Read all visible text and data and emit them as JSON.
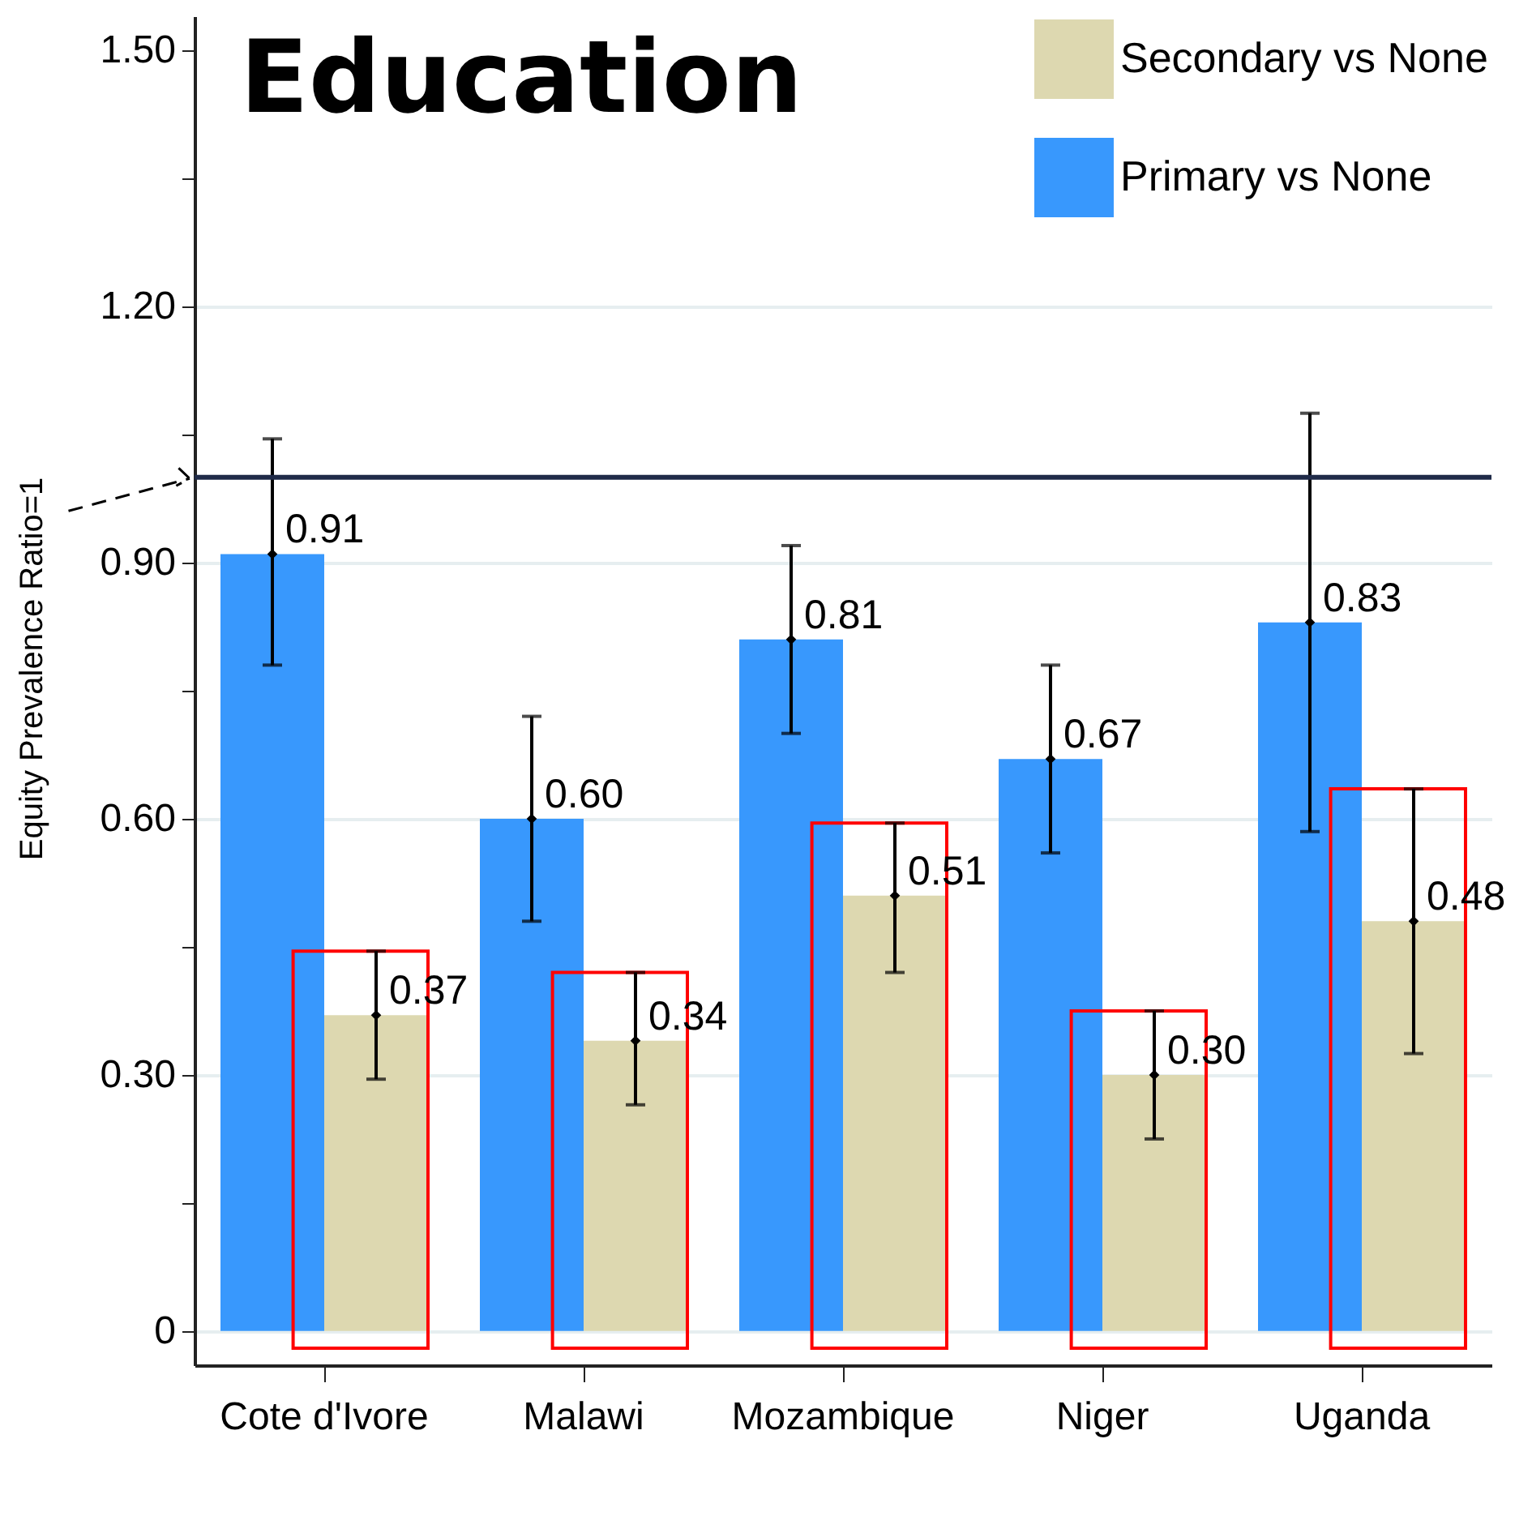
{
  "chart_data": {
    "type": "bar",
    "title": "Education",
    "categories": [
      "Cote d'Ivore",
      "Malawi",
      "Mozambique",
      "Niger",
      "Uganda"
    ],
    "series": [
      {
        "name": "Primary vs None",
        "color": "#3898fd",
        "values": [
          0.91,
          0.6,
          0.81,
          0.67,
          0.83
        ],
        "value_labels": [
          "0.91",
          "0.60",
          "0.81",
          "0.67",
          "0.83"
        ],
        "errors": [
          [
            0.78,
            1.045
          ],
          [
            0.48,
            0.72
          ],
          [
            0.7,
            0.92
          ],
          [
            0.56,
            0.78
          ],
          [
            0.585,
            1.075
          ]
        ]
      },
      {
        "name": "Secondary vs None",
        "color": "#ddd8b0",
        "values": [
          0.37,
          0.34,
          0.51,
          0.3,
          0.48
        ],
        "value_labels": [
          "0.37",
          "0.34",
          "0.51",
          "0.30",
          "0.48"
        ],
        "errors": [
          [
            0.295,
            0.445
          ],
          [
            0.265,
            0.42
          ],
          [
            0.42,
            0.595
          ],
          [
            0.225,
            0.375
          ],
          [
            0.325,
            0.635
          ]
        ]
      }
    ],
    "ylim": [
      -0.04,
      1.54
    ],
    "yticks": [
      0,
      {
        "value": 0.15,
        "label": null
      },
      {
        "value": 0.3,
        "label": "0.30"
      },
      {
        "value": 0.45,
        "label": null
      },
      {
        "value": 0.6,
        "label": "0.60"
      },
      {
        "value": 0.75,
        "label": null
      },
      {
        "value": 0.9,
        "label": "0.90"
      },
      {
        "value": 1.05,
        "label": null
      },
      {
        "value": 1.2,
        "label": "1.20"
      },
      {
        "value": 1.35,
        "label": null
      },
      {
        "value": 1.5,
        "label": "1.50"
      }
    ],
    "ref_lines": [
      {
        "axis": "y",
        "value": 1,
        "color": "#1f2a48"
      }
    ],
    "annotations": [
      "Equity Prevalence Ratio=1"
    ],
    "grid": "y",
    "legend": "top right",
    "marker": "diamond"
  }
}
